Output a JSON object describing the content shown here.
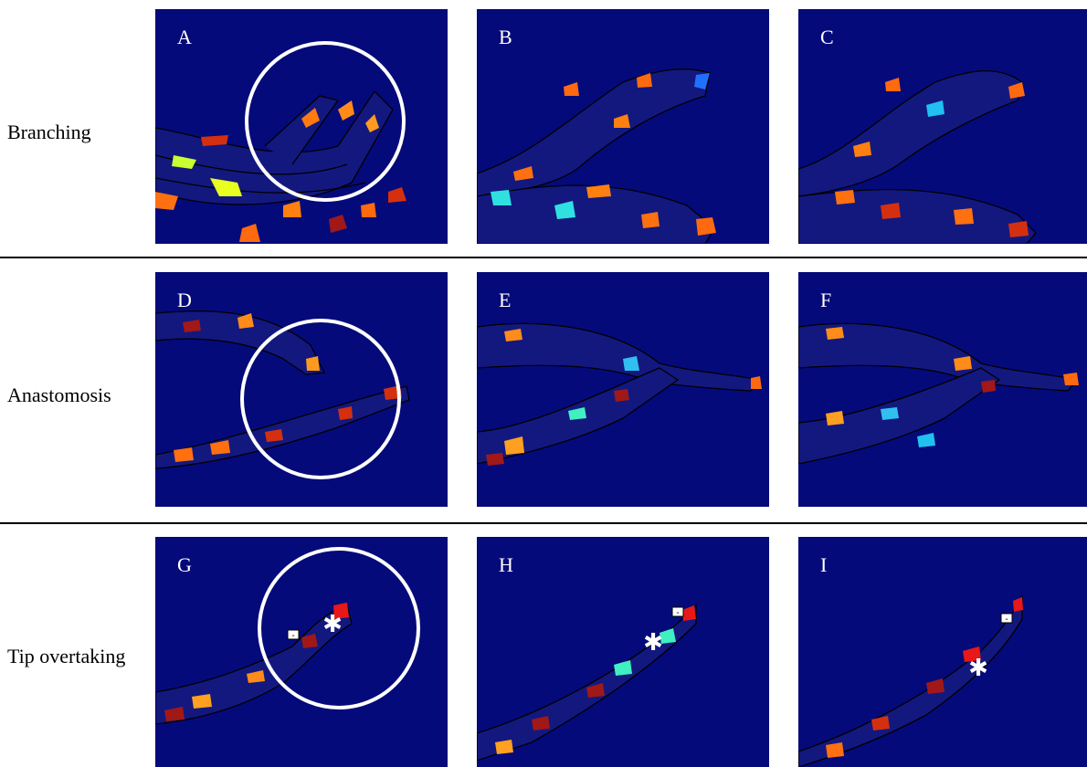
{
  "rows": [
    {
      "label": "Branching",
      "panels": [
        "A",
        "B",
        "C"
      ]
    },
    {
      "label": "Anastomosis",
      "panels": [
        "D",
        "E",
        "F"
      ]
    },
    {
      "label": "Tip overtaking",
      "panels": [
        "G",
        "H",
        "I"
      ]
    }
  ],
  "colors": {
    "background": "#050a7a",
    "cell_outline": "#000000",
    "highlight_circle": "#ffffff"
  },
  "marker_symbols": {
    "star": "✱",
    "minus_box": "-"
  }
}
